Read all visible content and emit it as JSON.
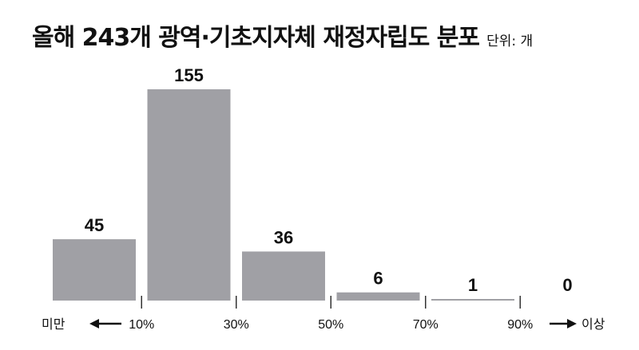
{
  "title": "올해 243개 광역·기초지자체 재정자립도 분포",
  "unit_label": "단위: 개",
  "chart_data": {
    "type": "bar",
    "title": "올해 243개 광역·기초지자체 재정자립도 분포",
    "unit": "단위: 개",
    "categories": [
      "10% 미만",
      "10%~30%",
      "30%~50%",
      "50%~70%",
      "70%~90%",
      "90% 이상"
    ],
    "values": [
      45,
      155,
      36,
      6,
      1,
      0
    ],
    "x_ticks": [
      "10%",
      "30%",
      "50%",
      "70%",
      "90%"
    ],
    "left_label": "미만",
    "right_label": "이상",
    "ylim": [
      0,
      155
    ],
    "grid": false,
    "legend": "none",
    "bar_color": "#a0a0a5",
    "axis_color": "#333333"
  }
}
